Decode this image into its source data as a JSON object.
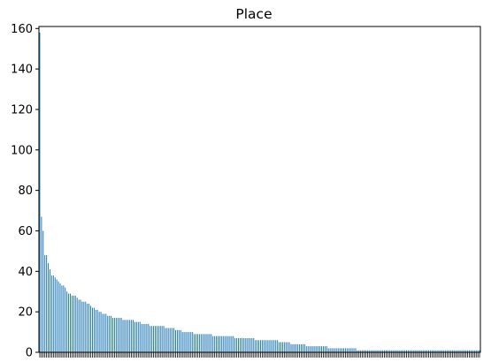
{
  "chart_data": {
    "type": "bar",
    "title": "Place",
    "xlabel": "",
    "ylabel": "",
    "ylim": [
      0,
      161
    ],
    "yticks": [
      0,
      20,
      40,
      60,
      80,
      100,
      120,
      140,
      160
    ],
    "x_tick_labels_visible": false,
    "grid": false,
    "legend": "none",
    "bar_color": "#1f77b4",
    "values": [
      158,
      67,
      60,
      48,
      48,
      44,
      41,
      38,
      38,
      37,
      36,
      35,
      34,
      33,
      33,
      32,
      30,
      29,
      29,
      28,
      28,
      28,
      27,
      26,
      26,
      25,
      25,
      25,
      24,
      24,
      23,
      22,
      22,
      21,
      21,
      20,
      20,
      19,
      19,
      19,
      18,
      18,
      18,
      17,
      17,
      17,
      17,
      17,
      17,
      16,
      16,
      16,
      16,
      16,
      16,
      16,
      15,
      15,
      15,
      15,
      14,
      14,
      14,
      14,
      14,
      13,
      13,
      13,
      13,
      13,
      13,
      13,
      13,
      13,
      12,
      12,
      12,
      12,
      12,
      12,
      11,
      11,
      11,
      11,
      10,
      10,
      10,
      10,
      10,
      10,
      10,
      9,
      9,
      9,
      9,
      9,
      9,
      9,
      9,
      9,
      9,
      9,
      8,
      8,
      8,
      8,
      8,
      8,
      8,
      8,
      8,
      8,
      8,
      8,
      8,
      7,
      7,
      7,
      7,
      7,
      7,
      7,
      7,
      7,
      7,
      7,
      7,
      6,
      6,
      6,
      6,
      6,
      6,
      6,
      6,
      6,
      6,
      6,
      6,
      6,
      6,
      5,
      5,
      5,
      5,
      5,
      5,
      5,
      4,
      4,
      4,
      4,
      4,
      4,
      4,
      4,
      4,
      3,
      3,
      3,
      3,
      3,
      3,
      3,
      3,
      3,
      3,
      3,
      3,
      3,
      2,
      2,
      2,
      2,
      2,
      2,
      2,
      2,
      2,
      2,
      2,
      2,
      2,
      2,
      2,
      2,
      2,
      1,
      1,
      1,
      1,
      1,
      1,
      1,
      1,
      1,
      1,
      1,
      1,
      1,
      1,
      1,
      1,
      1,
      1,
      1,
      1,
      1,
      1,
      1,
      1,
      1,
      1,
      1,
      1,
      1,
      1,
      1,
      1,
      1,
      1,
      1,
      1,
      1,
      1,
      1,
      1,
      1,
      1,
      1,
      1,
      1,
      1,
      1,
      1,
      1,
      1,
      1,
      1,
      1,
      1,
      1,
      1,
      1,
      1,
      1,
      1,
      1,
      1,
      1,
      1,
      1,
      1,
      1,
      1,
      1,
      1,
      1,
      1,
      1
    ]
  }
}
